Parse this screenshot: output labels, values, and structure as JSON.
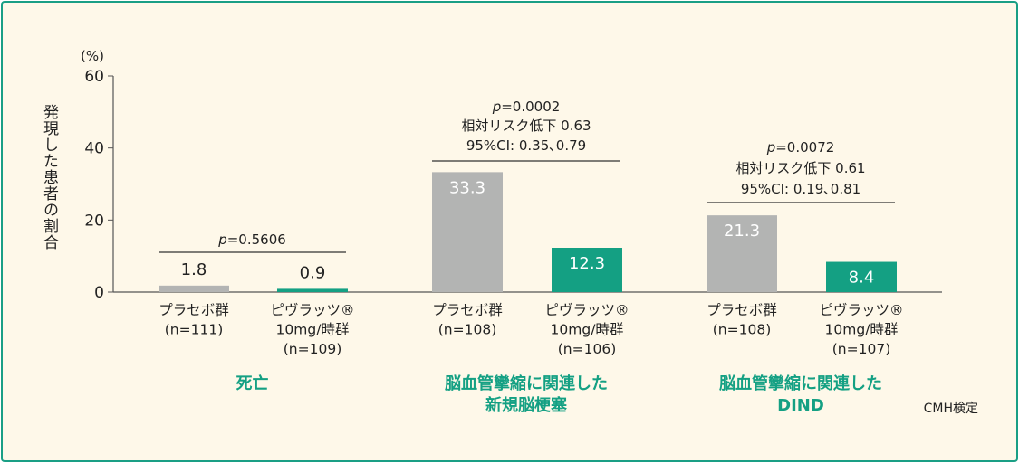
{
  "chart_data": {
    "type": "bar",
    "ylabel": "発現した患者の割合",
    "yunit": "(%)",
    "ylim": [
      0,
      60
    ],
    "yticks": [
      0,
      20,
      40,
      60
    ],
    "grid": false,
    "colors": {
      "placebo": "#b3b4b3",
      "pivlaz": "#14a083",
      "category": "#14a083",
      "frame": "#1a9f85",
      "background": "#fef8e9"
    },
    "groups": [
      {
        "category": [
          "死亡"
        ],
        "bars": [
          {
            "label": [
              "プラセボ群",
              "(n=111)"
            ],
            "value": 1.8,
            "series": "placebo"
          },
          {
            "label": [
              "ピヴラッツ®",
              "10mg/時群",
              "(n=109)"
            ],
            "value": 0.9,
            "series": "pivlaz"
          }
        ],
        "stats": [
          "p=0.5606"
        ]
      },
      {
        "category": [
          "脳血管攣縮に関連した",
          "新規脳梗塞"
        ],
        "bars": [
          {
            "label": [
              "プラセボ群",
              "(n=108)"
            ],
            "value": 33.3,
            "series": "placebo"
          },
          {
            "label": [
              "ピヴラッツ®",
              "10mg/時群",
              "(n=106)"
            ],
            "value": 12.3,
            "series": "pivlaz"
          }
        ],
        "stats": [
          "p=0.0002",
          "相対リスク低下 0.63",
          "95%CI: 0.35､0.79"
        ]
      },
      {
        "category": [
          "脳血管攣縮に関連した",
          "DIND"
        ],
        "bars": [
          {
            "label": [
              "プラセボ群",
              "(n=108)"
            ],
            "value": 21.3,
            "series": "placebo"
          },
          {
            "label": [
              "ピヴラッツ®",
              "10mg/時群",
              "(n=107)"
            ],
            "value": 8.4,
            "series": "pivlaz"
          }
        ],
        "stats": [
          "p=0.0072",
          "相対リスク低下 0.61",
          "95%CI: 0.19､0.81"
        ]
      }
    ],
    "footnote": "CMH検定"
  }
}
